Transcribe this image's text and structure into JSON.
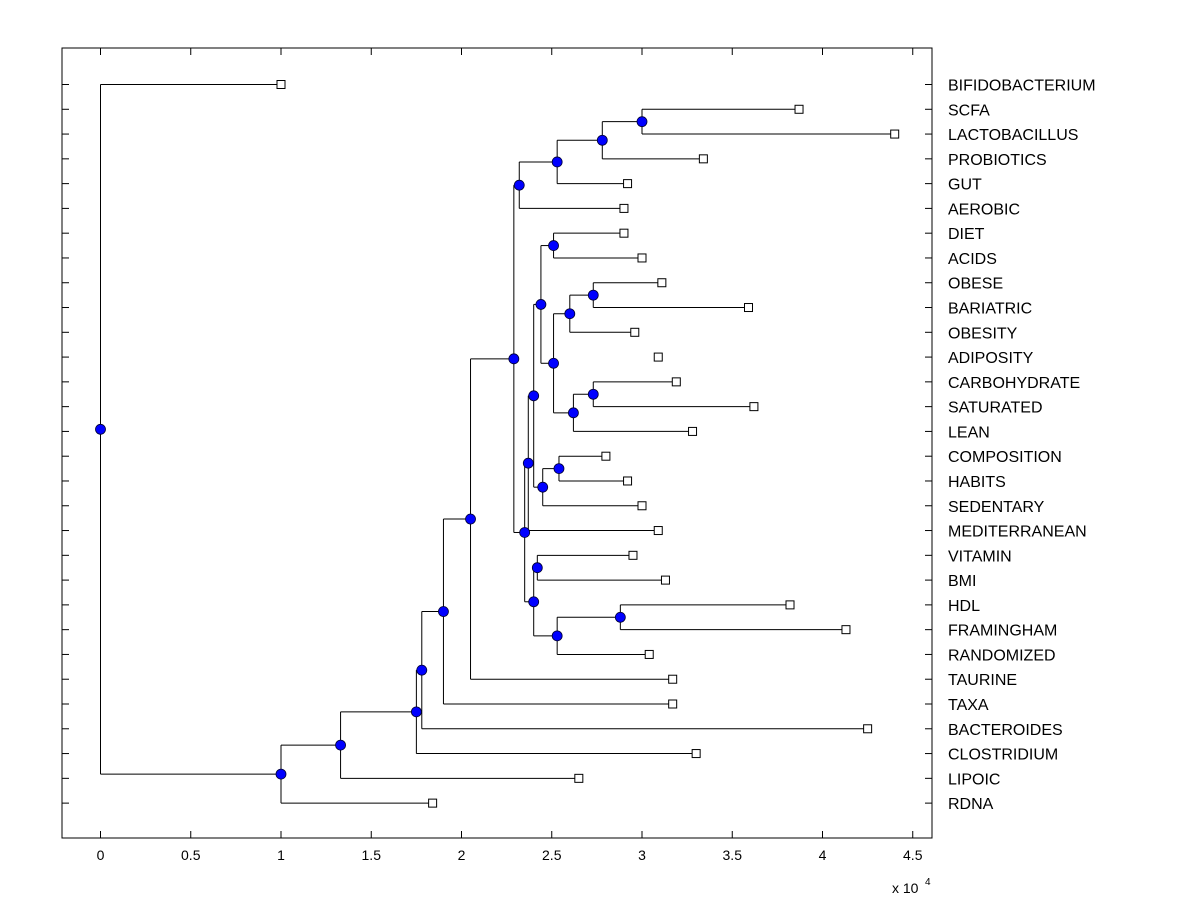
{
  "chart_data": {
    "type": "dendrogram",
    "title": "",
    "xlabel": "",
    "ylabel": "",
    "x_scale_label": "x 10",
    "x_scale_exponent": "4",
    "xlim": [
      -0.2,
      4.6
    ],
    "x_ticks": [
      0,
      0.5,
      1,
      1.5,
      2,
      2.5,
      3,
      3.5,
      4,
      4.5
    ],
    "x_tick_labels": [
      "0",
      "0.5",
      "1",
      "1.5",
      "2",
      "2.5",
      "3",
      "3.5",
      "4",
      "4.5"
    ],
    "grid": false,
    "marker_color": "#0000ff",
    "line_color": "#000000",
    "root": "n0",
    "leaves": [
      {
        "id": "l1",
        "label": "BIFIDOBACTERIUM",
        "x": 1.0
      },
      {
        "id": "l2",
        "label": "SCFA",
        "x": 3.87
      },
      {
        "id": "l3",
        "label": "LACTOBACILLUS",
        "x": 4.4
      },
      {
        "id": "l4",
        "label": "PROBIOTICS",
        "x": 3.34
      },
      {
        "id": "l5",
        "label": "GUT",
        "x": 2.92
      },
      {
        "id": "l6",
        "label": "AEROBIC",
        "x": 2.9
      },
      {
        "id": "l7",
        "label": "DIET",
        "x": 2.9
      },
      {
        "id": "l8",
        "label": "ACIDS",
        "x": 3.0
      },
      {
        "id": "l9",
        "label": "OBESE",
        "x": 3.11
      },
      {
        "id": "l10",
        "label": "BARIATRIC",
        "x": 3.59
      },
      {
        "id": "l11",
        "label": "OBESITY",
        "x": 2.96
      },
      {
        "id": "l12",
        "label": "ADIPOSITY",
        "x": 3.09
      },
      {
        "id": "l13",
        "label": "CARBOHYDRATE",
        "x": 3.19
      },
      {
        "id": "l14",
        "label": "SATURATED",
        "x": 3.62
      },
      {
        "id": "l15",
        "label": "LEAN",
        "x": 3.28
      },
      {
        "id": "l16",
        "label": "COMPOSITION",
        "x": 2.8
      },
      {
        "id": "l17",
        "label": "HABITS",
        "x": 2.92
      },
      {
        "id": "l18",
        "label": "SEDENTARY",
        "x": 3.0
      },
      {
        "id": "l19",
        "label": "MEDITERRANEAN",
        "x": 3.09
      },
      {
        "id": "l20",
        "label": "VITAMIN",
        "x": 2.95
      },
      {
        "id": "l21",
        "label": "BMI",
        "x": 3.13
      },
      {
        "id": "l22",
        "label": "HDL",
        "x": 3.82
      },
      {
        "id": "l23",
        "label": "FRAMINGHAM",
        "x": 4.13
      },
      {
        "id": "l24",
        "label": "RANDOMIZED",
        "x": 3.04
      },
      {
        "id": "l25",
        "label": "TAURINE",
        "x": 3.17
      },
      {
        "id": "l26",
        "label": "TAXA",
        "x": 3.17
      },
      {
        "id": "l27",
        "label": "BACTEROIDES",
        "x": 4.25
      },
      {
        "id": "l28",
        "label": "CLOSTRIDIUM",
        "x": 3.3
      },
      {
        "id": "l29",
        "label": "LIPOIC",
        "x": 2.65
      },
      {
        "id": "l30",
        "label": "RDNA",
        "x": 1.84
      }
    ],
    "nodes": [
      {
        "id": "n0",
        "x": 0.0,
        "children": [
          "l1",
          "n1"
        ]
      },
      {
        "id": "n1",
        "x": 1.0,
        "children": [
          "n2",
          "l30"
        ]
      },
      {
        "id": "n2",
        "x": 1.33,
        "children": [
          "n3",
          "l29"
        ]
      },
      {
        "id": "n3",
        "x": 1.75,
        "children": [
          "n4",
          "l28"
        ]
      },
      {
        "id": "n4",
        "x": 1.78,
        "children": [
          "n5",
          "l27"
        ]
      },
      {
        "id": "n5",
        "x": 1.9,
        "children": [
          "n6",
          "l26"
        ]
      },
      {
        "id": "n6",
        "x": 2.05,
        "children": [
          "n7",
          "l25"
        ]
      },
      {
        "id": "n7",
        "x": 2.29,
        "children": [
          "n8",
          "n12"
        ]
      },
      {
        "id": "n8",
        "x": 2.32,
        "children": [
          "n9",
          "l6"
        ]
      },
      {
        "id": "n9",
        "x": 2.53,
        "children": [
          "n10",
          "l5"
        ]
      },
      {
        "id": "n10",
        "x": 2.78,
        "children": [
          "n11",
          "l4"
        ]
      },
      {
        "id": "n11",
        "x": 3.0,
        "children": [
          "l2",
          "l3"
        ]
      },
      {
        "id": "n12",
        "x": 2.35,
        "children": [
          "n13",
          "n23"
        ]
      },
      {
        "id": "n13",
        "x": 2.37,
        "children": [
          "n14",
          "l19"
        ]
      },
      {
        "id": "n14",
        "x": 2.4,
        "children": [
          "n15",
          "n21"
        ]
      },
      {
        "id": "n15",
        "x": 2.44,
        "children": [
          "n16",
          "n17"
        ]
      },
      {
        "id": "n16",
        "x": 2.51,
        "children": [
          "l7",
          "l8"
        ]
      },
      {
        "id": "n17",
        "x": 2.51,
        "children": [
          "n18",
          "n20"
        ]
      },
      {
        "id": "n18",
        "x": 2.6,
        "children": [
          "n19",
          "l11"
        ]
      },
      {
        "id": "n19",
        "x": 2.73,
        "children": [
          "l9",
          "l10"
        ]
      },
      {
        "id": "n20",
        "x": 2.62,
        "children": [
          "n27",
          "l15"
        ]
      },
      {
        "id": "n27",
        "x": 2.73,
        "children": [
          "l13",
          "l14"
        ]
      },
      {
        "id": "n21",
        "x": 2.45,
        "children": [
          "n22",
          "l18"
        ]
      },
      {
        "id": "n22",
        "x": 2.54,
        "children": [
          "l16",
          "l17"
        ]
      },
      {
        "id": "n23",
        "x": 2.4,
        "children": [
          "n24",
          "n25"
        ]
      },
      {
        "id": "n24",
        "x": 2.42,
        "children": [
          "l20",
          "l21"
        ]
      },
      {
        "id": "n25",
        "x": 2.53,
        "children": [
          "n26",
          "l24"
        ]
      },
      {
        "id": "n26",
        "x": 2.88,
        "children": [
          "l22",
          "l23"
        ]
      }
    ]
  }
}
